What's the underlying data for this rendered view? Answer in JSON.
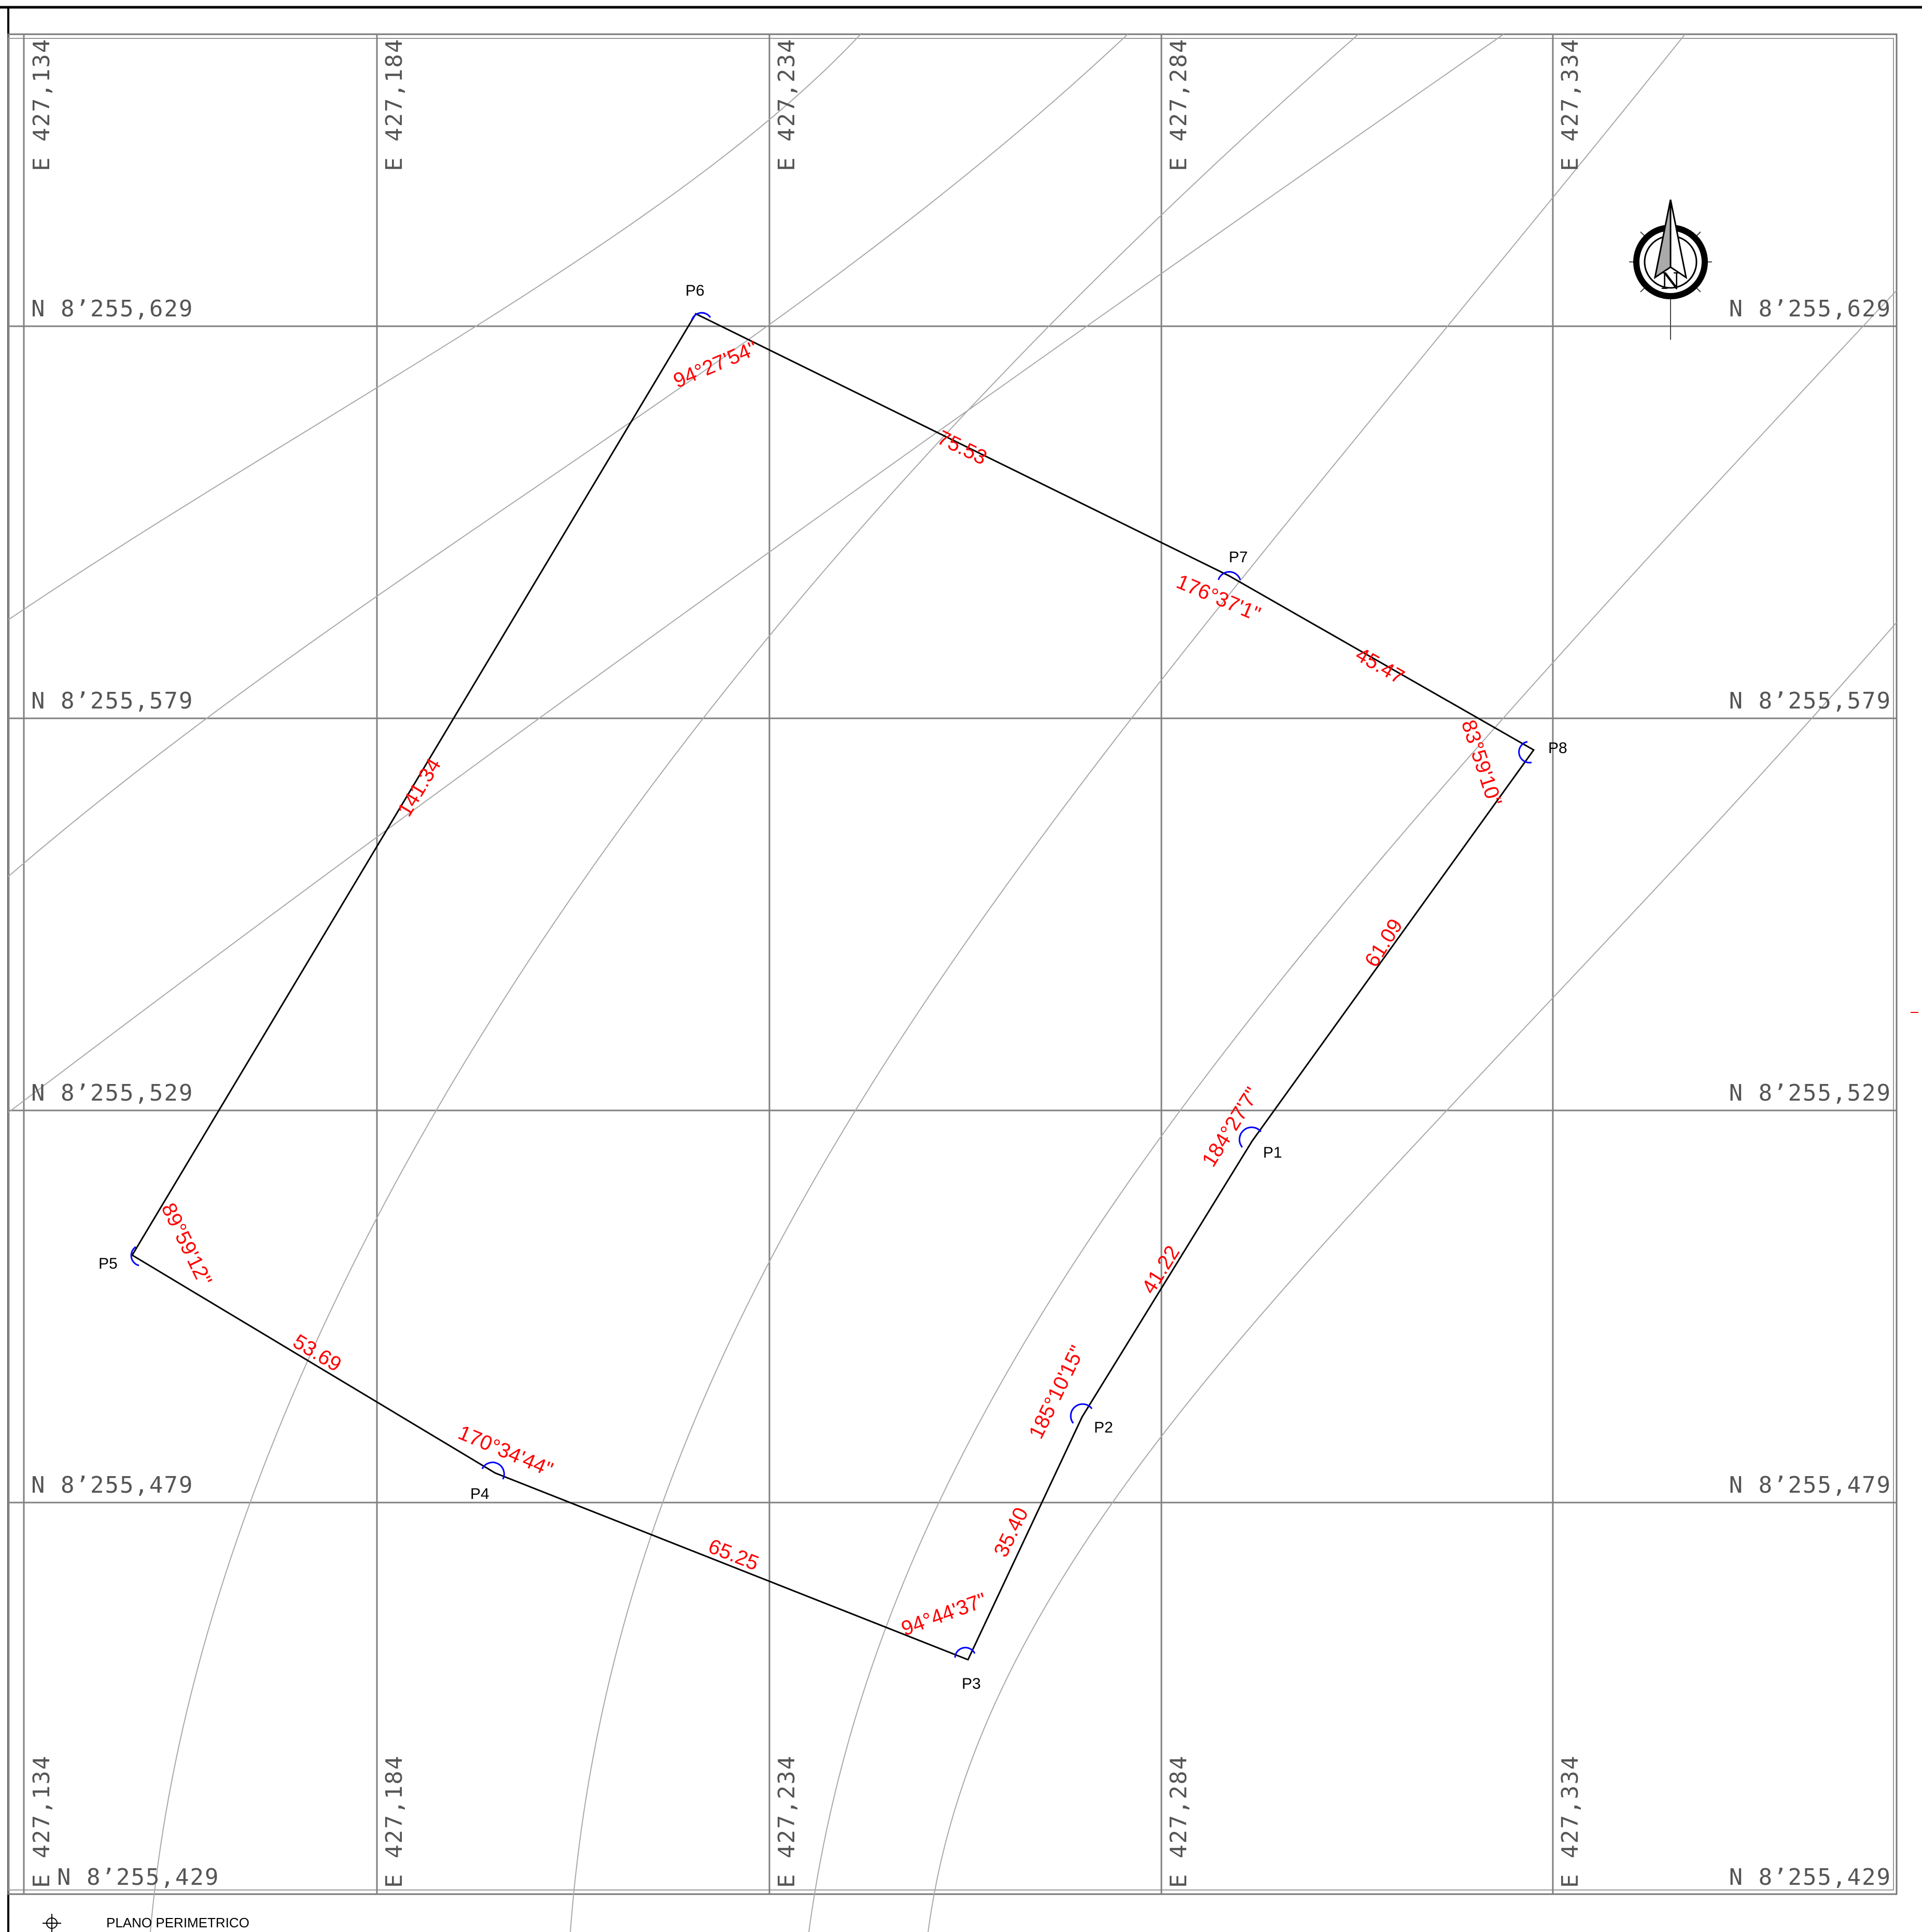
{
  "map": {
    "easting_labels": [
      "E  427,134",
      "E  427,184",
      "E  427,234",
      "E  427,284",
      "E  427,334"
    ],
    "northing_labels": [
      "N  8’255,629",
      "N  8’255,579",
      "N  8’255,529",
      "N  8’255,479",
      "N  8’255,429"
    ],
    "north_arrow_letter": "N",
    "footer_title": "PLANO PERIMETRICO",
    "vertices": [
      {
        "name": "P1"
      },
      {
        "name": "P2"
      },
      {
        "name": "P3"
      },
      {
        "name": "P4"
      },
      {
        "name": "P5"
      },
      {
        "name": "P6"
      },
      {
        "name": "P7"
      },
      {
        "name": "P8"
      }
    ],
    "sides": [
      {
        "from": "P1",
        "to": "P2",
        "distance": "41.22"
      },
      {
        "from": "P2",
        "to": "P3",
        "distance": "35.40"
      },
      {
        "from": "P3",
        "to": "P4",
        "distance": "65.25"
      },
      {
        "from": "P4",
        "to": "P5",
        "distance": "53.69"
      },
      {
        "from": "P5",
        "to": "P6",
        "distance": "141.34"
      },
      {
        "from": "P6",
        "to": "P7",
        "distance": "75.53"
      },
      {
        "from": "P7",
        "to": "P8",
        "distance": "45.47"
      },
      {
        "from": "P8",
        "to": "P1",
        "distance": "61.09"
      }
    ],
    "angles": [
      {
        "vertex": "P1",
        "value": "184°27'7\""
      },
      {
        "vertex": "P2",
        "value": "185°10'15\""
      },
      {
        "vertex": "P3",
        "value": "94°44'37\""
      },
      {
        "vertex": "P4",
        "value": "170°34'44\""
      },
      {
        "vertex": "P5",
        "value": "89°59'12\""
      },
      {
        "vertex": "P6",
        "value": "94°27'54\""
      },
      {
        "vertex": "P7",
        "value": "176°37'1\""
      },
      {
        "vertex": "P8",
        "value": "83°59'10\""
      }
    ],
    "colors": {
      "boundary": "#000000",
      "annotation": "#ff0000",
      "angle_arc": "#0000ff",
      "grid": "#808080",
      "contour": "#a0a0a0"
    }
  }
}
